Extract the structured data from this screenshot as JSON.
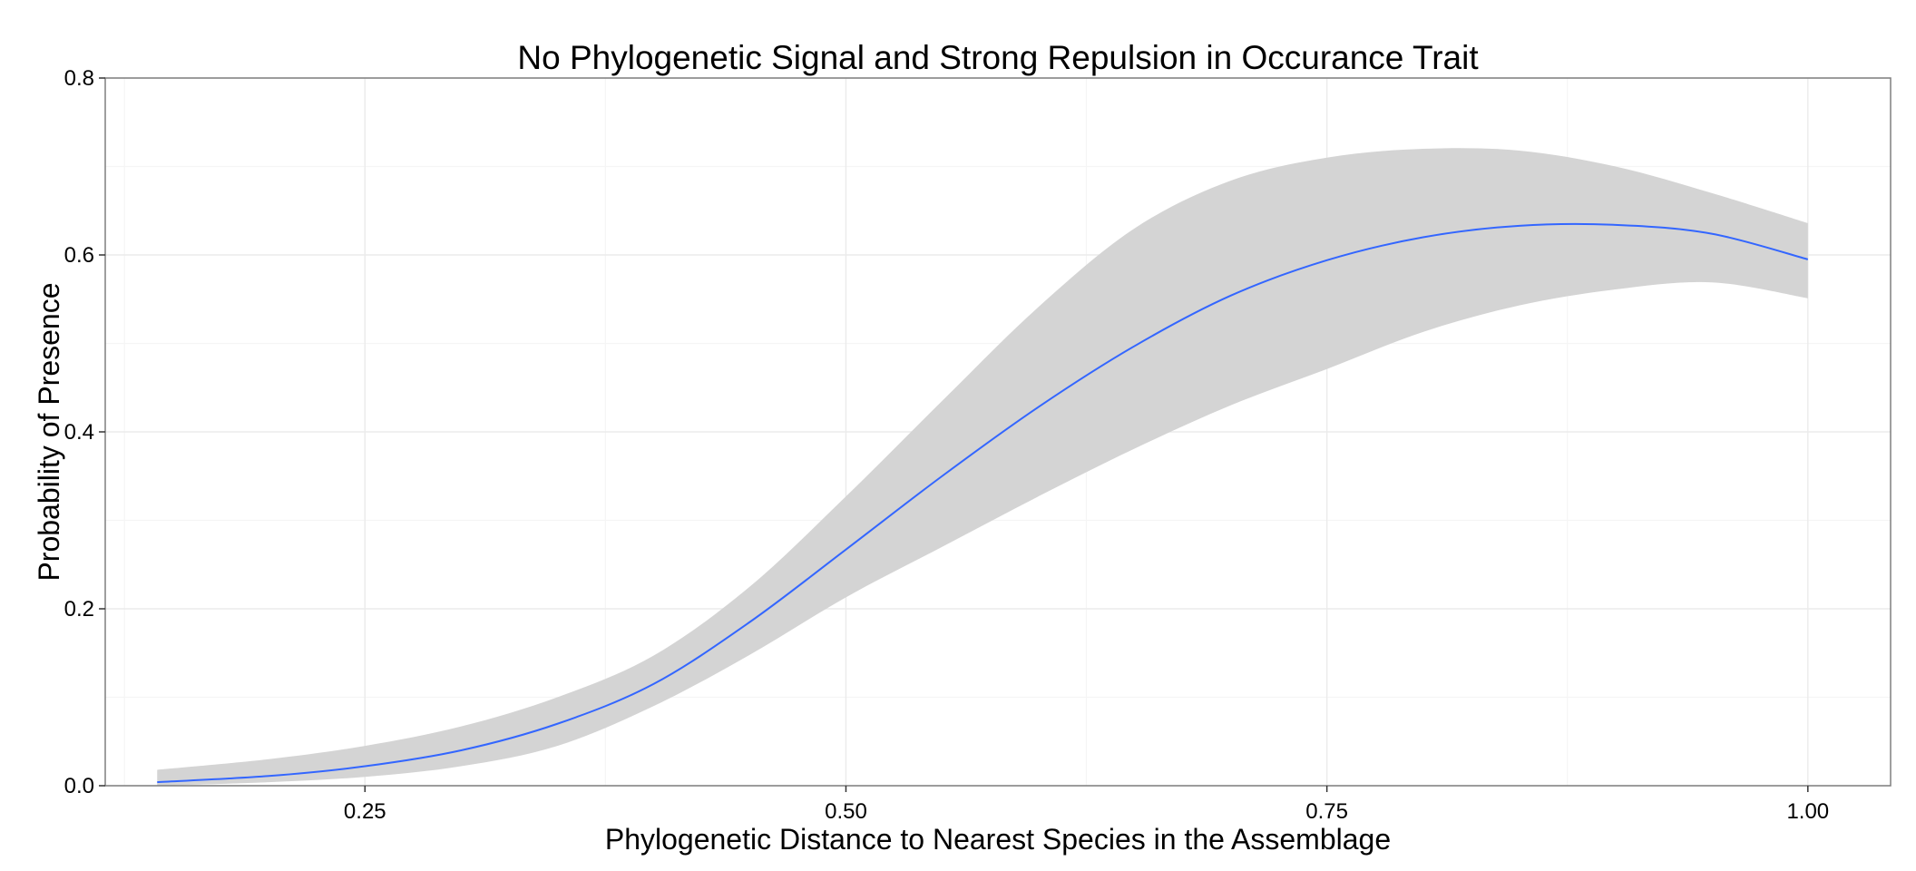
{
  "chart_data": {
    "type": "line",
    "title": "No Phylogenetic Signal and Strong Repulsion in Occurance Trait",
    "xlabel": "Phylogenetic Distance to Nearest Species in the Assemblage",
    "ylabel": "Probability of Presence",
    "xlim": [
      0.115,
      1.043
    ],
    "ylim": [
      0,
      0.8
    ],
    "x_ticks": [
      0.25,
      0.5,
      0.75,
      1.0
    ],
    "x_tick_labels": [
      "0.25",
      "0.50",
      "0.75",
      "1.00"
    ],
    "y_ticks": [
      0.0,
      0.2,
      0.4,
      0.6,
      0.8
    ],
    "y_tick_labels": [
      "0.0",
      "0.2",
      "0.4",
      "0.6",
      "0.8"
    ],
    "grid": true,
    "colors": {
      "line": "#3366ff",
      "ribbon": "#d4d4d4",
      "grid": "#ebebeb",
      "panel_border": "#7f7f7f"
    },
    "series": [
      {
        "x": [
          0.142,
          0.2,
          0.25,
          0.3,
          0.35,
          0.4,
          0.45,
          0.5,
          0.55,
          0.6,
          0.65,
          0.7,
          0.75,
          0.8,
          0.85,
          0.9,
          0.95,
          1.0
        ],
        "y": [
          0.004,
          0.011,
          0.022,
          0.04,
          0.07,
          0.115,
          0.185,
          0.267,
          0.35,
          0.428,
          0.497,
          0.554,
          0.594,
          0.62,
          0.633,
          0.634,
          0.624,
          0.595
        ],
        "lower": [
          0.0,
          0.004,
          0.01,
          0.022,
          0.045,
          0.09,
          0.148,
          0.213,
          0.27,
          0.327,
          0.381,
          0.43,
          0.471,
          0.513,
          0.543,
          0.561,
          0.569,
          0.551
        ],
        "upper": [
          0.018,
          0.03,
          0.045,
          0.067,
          0.1,
          0.147,
          0.225,
          0.327,
          0.435,
          0.541,
          0.63,
          0.684,
          0.71,
          0.72,
          0.718,
          0.7,
          0.67,
          0.636
        ]
      }
    ]
  }
}
